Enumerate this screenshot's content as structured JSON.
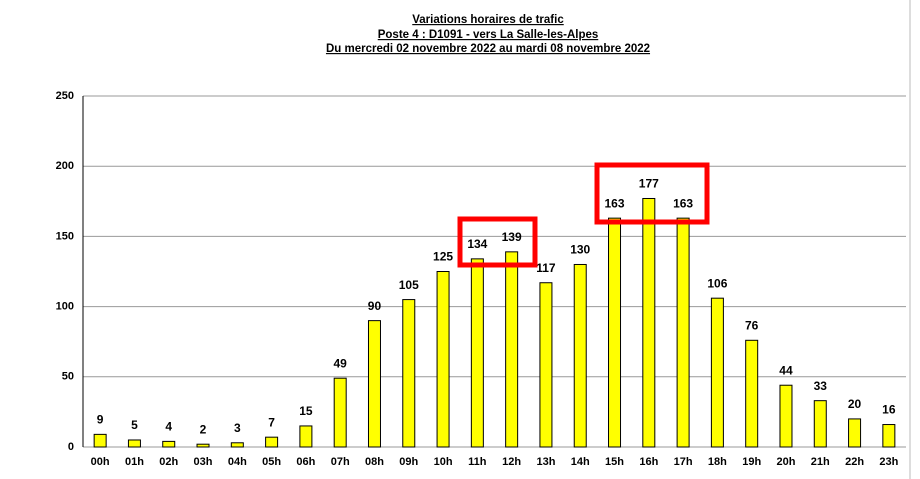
{
  "chart_data": {
    "type": "bar",
    "title": [
      "Variations horaires de trafic",
      "Poste 4 : D1091 - vers La Salle-les-Alpes",
      "Du mercredi 02 novembre 2022 au mardi 08 novembre 2022"
    ],
    "categories": [
      "00h",
      "01h",
      "02h",
      "03h",
      "04h",
      "05h",
      "06h",
      "07h",
      "08h",
      "09h",
      "10h",
      "11h",
      "12h",
      "13h",
      "14h",
      "15h",
      "16h",
      "17h",
      "18h",
      "19h",
      "20h",
      "21h",
      "22h",
      "23h"
    ],
    "values": [
      9,
      5,
      4,
      2,
      3,
      7,
      15,
      49,
      90,
      105,
      125,
      134,
      139,
      117,
      130,
      163,
      177,
      163,
      106,
      76,
      44,
      33,
      20,
      16
    ],
    "color": "#ffff00",
    "ylim": [
      0,
      250
    ],
    "yticks": [
      0,
      50,
      100,
      150,
      200,
      250
    ],
    "grid": true
  }
}
